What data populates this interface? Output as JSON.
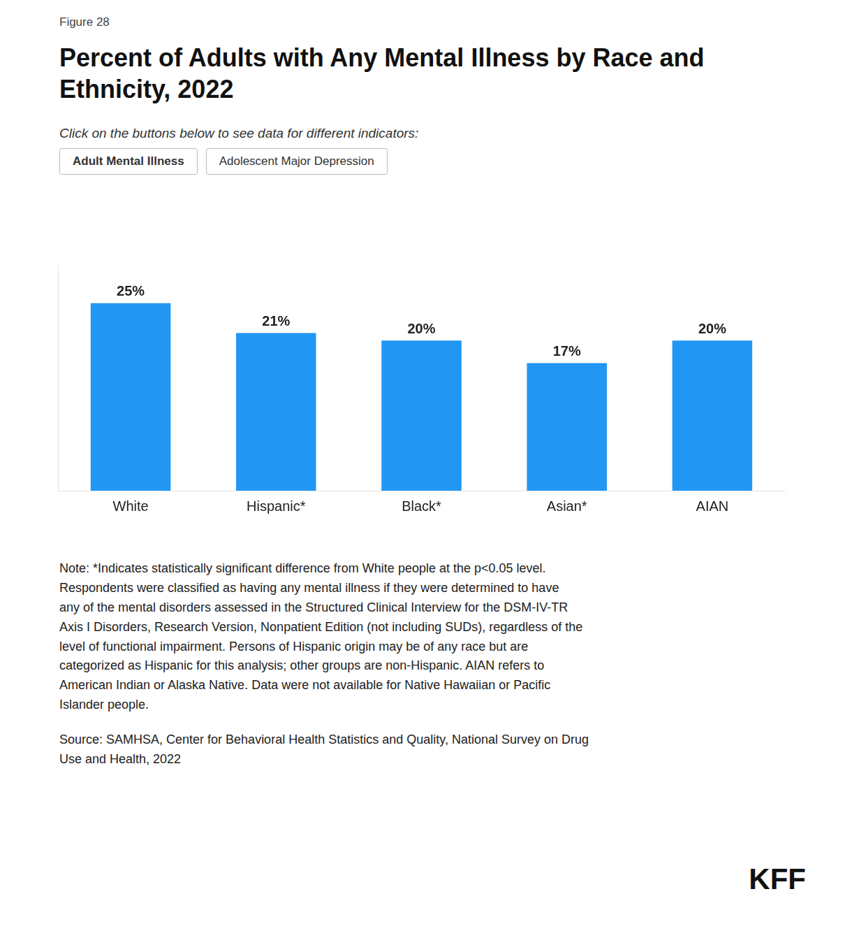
{
  "chart_data": {
    "type": "bar",
    "figure_label": "Figure 28",
    "title": "Percent of Adults with Any Mental Illness by Race and\nEthnicity, 2022",
    "subtitle": "Click on the buttons below to see data for different indicators:",
    "buttons": [
      "Adult Mental Illness",
      "Adolescent Major Depression"
    ],
    "categories": [
      "White",
      "Hispanic*",
      "Black*",
      "Asian*",
      "AIAN"
    ],
    "values": [
      25,
      21,
      20,
      17,
      20
    ],
    "value_labels": [
      "25%",
      "21%",
      "20%",
      "17%",
      "20%"
    ],
    "data_labels": true,
    "color": "#2196f3",
    "ylim": [
      0,
      30
    ],
    "grid": false,
    "tick_labels": "x",
    "note": "Note: *Indicates statistically significant difference from White people at the p<0.05 level.\nRespondents were classified as having any mental illness if they were determined to have\nany of the mental disorders assessed in the Structured Clinical Interview for the DSM-IV-TR\nAxis I Disorders, Research Version, Nonpatient Edition (not including SUDs), regardless of the\nlevel of functional impairment. Persons of Hispanic origin may be of any race but are\ncategorized as Hispanic for this analysis; other groups are non-Hispanic. AIAN refers to\nAmerican Indian or Alaska Native. Data were not available for Native Hawaiian or Pacific\nIslander people.",
    "source": "Source: SAMHSA, Center for Behavioral Health Statistics and Quality, National Survey on Drug\nUse and Health, 2022",
    "logo": "KFF"
  }
}
